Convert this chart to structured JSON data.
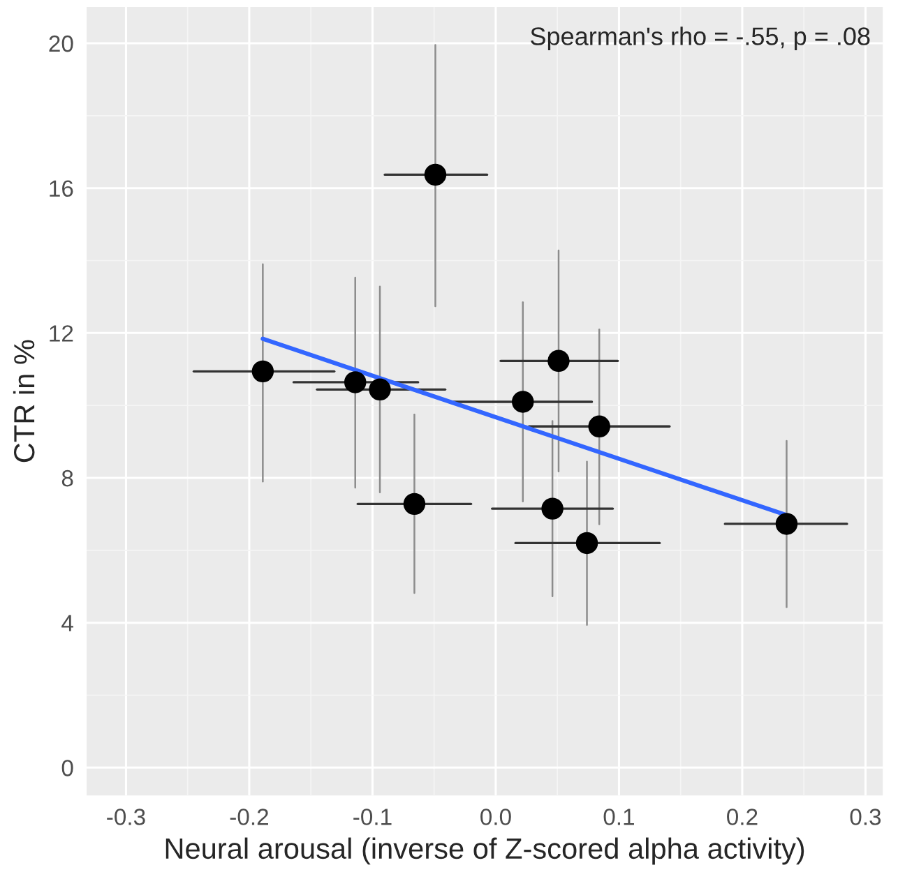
{
  "chart_data": {
    "type": "scatter",
    "xlabel": "Neural arousal (inverse of Z-scored alpha activity)",
    "ylabel": "CTR in %",
    "annotations": [
      "Spearman's rho = -.55, p = .08"
    ],
    "xlim": [
      -0.332,
      0.314
    ],
    "ylim": [
      -0.77,
      21.0
    ],
    "xticks": [
      -0.3,
      -0.2,
      -0.1,
      {
        "value": 0,
        "label": "0.0"
      },
      0.1,
      0.2,
      0.3
    ],
    "yticks": [
      0,
      4,
      8,
      12,
      16,
      20
    ],
    "grid": true,
    "series": [
      {
        "marker": "circle",
        "color": "#000000",
        "x": [
          -0.189,
          -0.114,
          -0.094,
          -0.049,
          -0.066,
          0.051,
          0.022,
          0.084,
          0.046,
          0.074,
          0.236
        ],
        "values": [
          10.94,
          10.64,
          10.44,
          16.37,
          7.28,
          11.23,
          10.1,
          9.42,
          7.15,
          6.2,
          6.73
        ],
        "errors": [
          [
            7.9,
            13.9
          ],
          [
            7.73,
            13.53
          ],
          [
            7.6,
            13.28
          ],
          [
            12.74,
            19.95
          ],
          [
            4.82,
            9.75
          ],
          [
            8.18,
            14.28
          ],
          [
            7.35,
            12.85
          ],
          [
            6.72,
            12.1
          ],
          [
            4.73,
            9.57
          ],
          [
            3.94,
            8.45
          ],
          [
            4.43,
            9.02
          ]
        ],
        "xerrors": [
          [
            -0.245,
            -0.131
          ],
          [
            -0.164,
            -0.063
          ],
          [
            -0.145,
            -0.041
          ],
          [
            -0.09,
            -0.007
          ],
          [
            -0.112,
            -0.02
          ],
          [
            0.004,
            0.099
          ],
          [
            -0.035,
            0.078
          ],
          [
            0.027,
            0.141
          ],
          [
            -0.003,
            0.095
          ],
          [
            0.016,
            0.133
          ],
          [
            0.186,
            0.285
          ]
        ]
      },
      {
        "type": "line",
        "color": "#3366ff",
        "x": [
          -0.189,
          0.236
        ],
        "values": [
          11.84,
          6.97
        ]
      }
    ]
  }
}
